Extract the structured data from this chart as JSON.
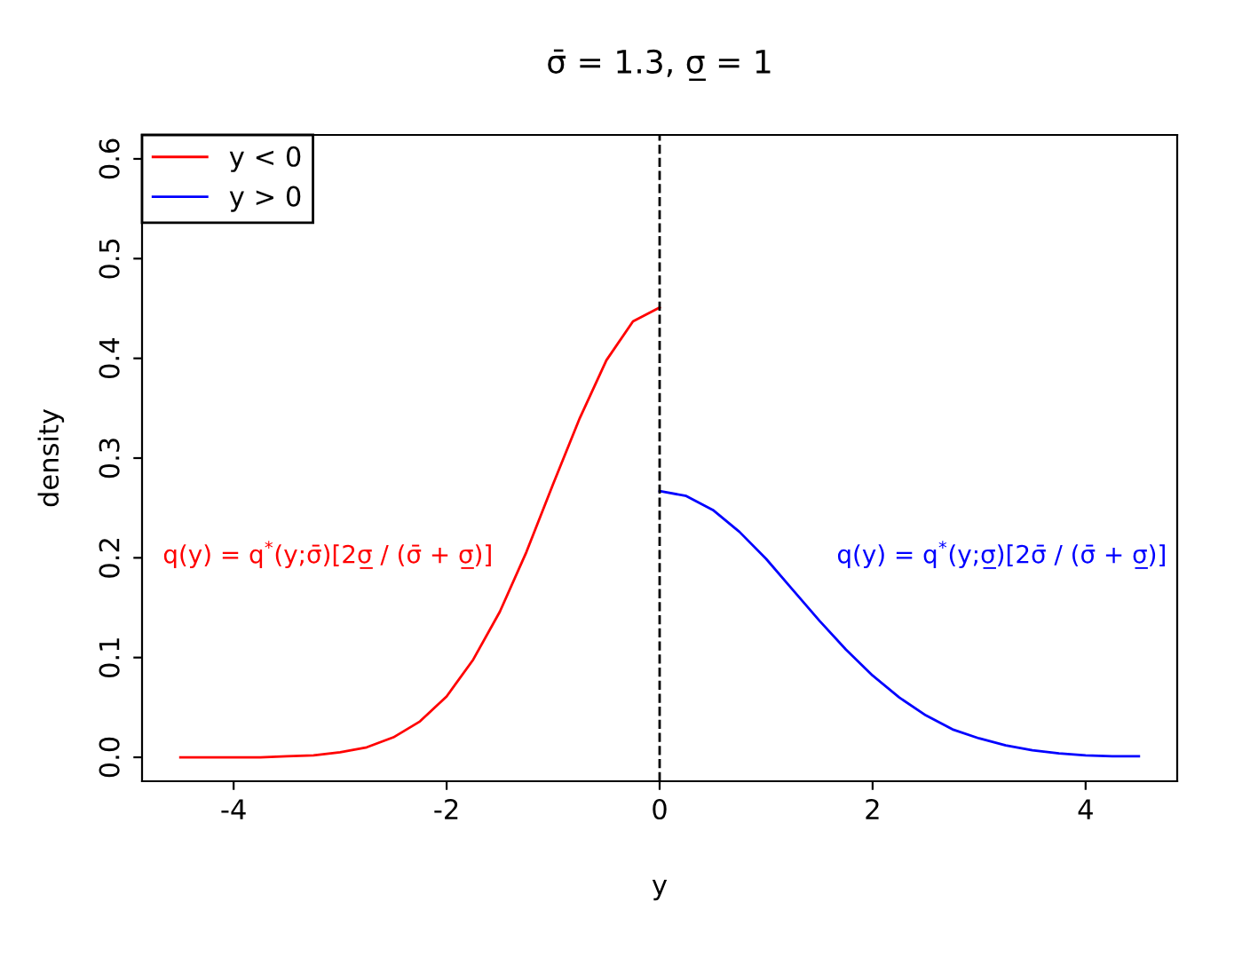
{
  "chart_data": {
    "type": "line",
    "title": "σ̄ = 1.3, σ̲ = 1",
    "xlabel": "y",
    "ylabel": "density",
    "series": [
      {
        "name": "y < 0",
        "color": "#ff0000",
        "x": [
          -4.5,
          -4.25,
          -4,
          -3.75,
          -3.5,
          -3.25,
          -3,
          -2.75,
          -2.5,
          -2.25,
          -2,
          -1.75,
          -1.5,
          -1.25,
          -1,
          -0.75,
          -0.5,
          -0.25,
          0
        ],
        "values": [
          0.0,
          0.0,
          0.0,
          0.0,
          0.001,
          0.002,
          0.005,
          0.01,
          0.02,
          0.036,
          0.061,
          0.098,
          0.146,
          0.206,
          0.274,
          0.34,
          0.398,
          0.437,
          0.451
        ]
      },
      {
        "name": "y > 0",
        "color": "#0000ff",
        "x": [
          0,
          0.25,
          0.5,
          0.75,
          1,
          1.25,
          1.5,
          1.75,
          2,
          2.25,
          2.5,
          2.75,
          3,
          3.25,
          3.5,
          3.75,
          4,
          4.25,
          4.5
        ],
        "values": [
          0.267,
          0.262,
          0.248,
          0.226,
          0.199,
          0.168,
          0.137,
          0.108,
          0.082,
          0.06,
          0.042,
          0.028,
          0.019,
          0.012,
          0.007,
          0.004,
          0.002,
          0.001,
          0.001
        ]
      }
    ],
    "annotations": [
      "q(y) = q$^{*}$(y;σ̄)[2σ̲ / (σ̄ + σ̲)]",
      "q(y) = q$^{*}$(y;σ̲)[2σ̄ / (σ̄ + σ̲)]"
    ],
    "ref_lines": [
      {
        "axis": "x",
        "value": 0,
        "color": "#000000",
        "line_style": "dashed"
      }
    ],
    "xlim": [
      -4.86,
      4.86
    ],
    "ylim": [
      -0.024,
      0.624
    ],
    "xticks": [
      -4,
      -2,
      0,
      2,
      4
    ],
    "yticks": [
      {
        "value": 0,
        "label": "0.0"
      },
      0.1,
      0.2,
      0.3,
      0.4,
      0.5,
      0.6
    ],
    "grid": false,
    "legend": "top left",
    "line_style": "solid",
    "marker": "none"
  }
}
